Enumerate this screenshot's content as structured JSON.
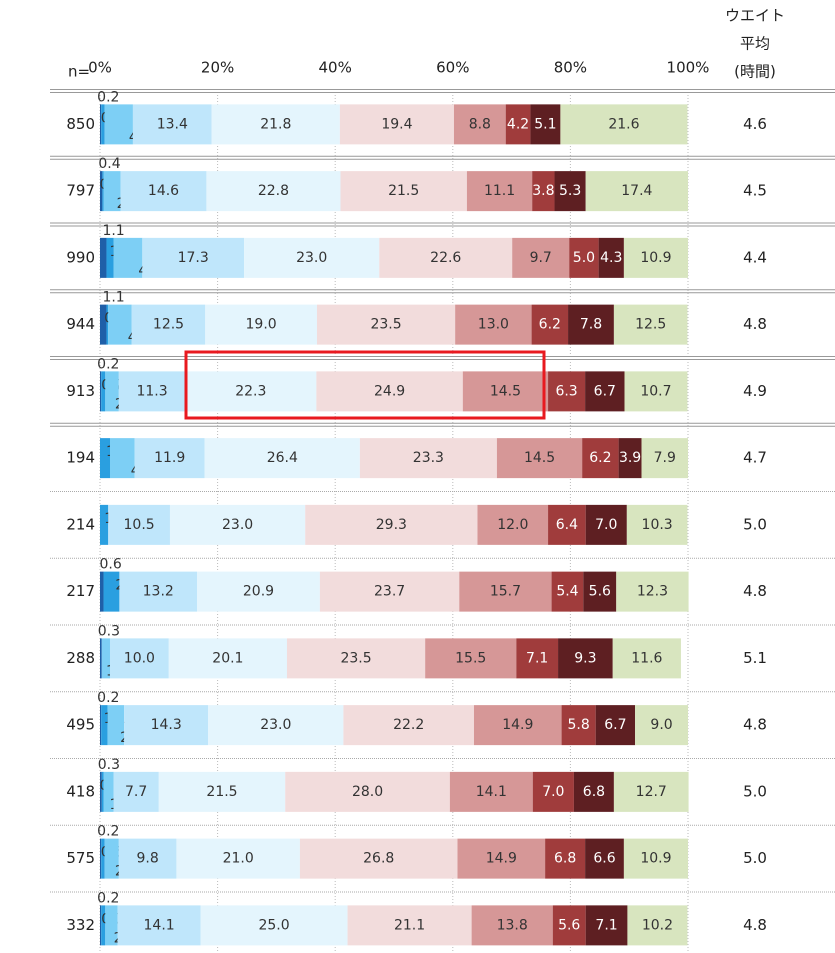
{
  "chart_data": {
    "type": "stacked_bar",
    "n_label": "n=",
    "avg_label": [
      "ウエイト",
      "平均",
      "(時間)"
    ],
    "categories": [
      850,
      797,
      990,
      944,
      913,
      194,
      214,
      217,
      288,
      495,
      418,
      575,
      332
    ],
    "xlim": [
      0,
      100
    ],
    "xticks": [
      {
        "value": 0,
        "label": "0%"
      },
      {
        "value": 20,
        "label": "20%"
      },
      {
        "value": 40,
        "label": "40%"
      },
      {
        "value": 60,
        "label": "60%"
      },
      {
        "value": 80,
        "label": "80%"
      },
      {
        "value": 100,
        "label": "100%"
      }
    ],
    "grid": true,
    "series": [
      {
        "color": "#1f5fa8",
        "label_color": "#333333",
        "values": [
          0.2,
          0.4,
          1.1,
          1.1,
          0.2,
          null,
          null,
          0.6,
          0.3,
          0.2,
          0.3,
          0.2,
          0.2
        ],
        "value_labels": [
          "0.2",
          "0.4",
          "1.1",
          "1.1",
          "0.2",
          null,
          null,
          "0.6",
          "0.3",
          "0.2",
          "0.3",
          "0.2",
          "0.2"
        ]
      },
      {
        "color": "#2a9fe0",
        "label_color": "#333333",
        "values": [
          0.6,
          0.2,
          1.2,
          0.3,
          0.7,
          1.7,
          1.4,
          2.7,
          null,
          1.1,
          0.3,
          0.6,
          0.7
        ],
        "value_labels": [
          "0.6",
          "0.2",
          "1.2",
          "0.3",
          "0.7",
          "1.7",
          "1.4",
          "2.7",
          null,
          "1.1",
          "0.3",
          "0.6",
          "0.7"
        ]
      },
      {
        "color": "#7dcff5",
        "label_color": "#333333",
        "values": [
          4.8,
          2.9,
          4.9,
          4.0,
          2.3,
          4.2,
          null,
          null,
          1.4,
          2.8,
          1.7,
          2.4,
          2.1
        ],
        "value_labels": [
          "4.8",
          "2.9",
          "4.9",
          "4.0",
          "2.3",
          "4.2",
          null,
          null,
          "1.4",
          "2.8",
          "1.7",
          "2.4",
          "2.1"
        ]
      },
      {
        "color": "#bfe6fb",
        "label_color": "#333333",
        "values": [
          13.4,
          14.6,
          17.3,
          12.5,
          11.3,
          11.9,
          10.5,
          13.2,
          10.0,
          14.3,
          7.7,
          9.8,
          14.1
        ],
        "value_labels": [
          "13.4",
          "14.6",
          "17.3",
          "12.5",
          "11.3",
          "11.9",
          "10.5",
          "13.2",
          "10.0",
          "14.3",
          "7.7",
          "9.8",
          "14.1"
        ]
      },
      {
        "color": "#e4f5fd",
        "label_color": "#333333",
        "values": [
          21.8,
          22.8,
          23.0,
          19.0,
          22.3,
          26.4,
          23.0,
          20.9,
          20.1,
          23.0,
          21.5,
          21.0,
          25.0
        ],
        "value_labels": [
          "21.8",
          "22.8",
          "23.0",
          "19.0",
          "22.3",
          "26.4",
          "23.0",
          "20.9",
          "20.1",
          "23.0",
          "21.5",
          "21.0",
          "25.0"
        ]
      },
      {
        "color": "#f2dcdc",
        "label_color": "#333333",
        "values": [
          19.4,
          21.5,
          22.6,
          23.5,
          24.9,
          23.3,
          29.3,
          23.7,
          23.5,
          22.2,
          28.0,
          26.8,
          21.1
        ],
        "value_labels": [
          "19.4",
          "21.5",
          "22.6",
          "23.5",
          "24.9",
          "23.3",
          "29.3",
          "23.7",
          "23.5",
          "22.2",
          "28.0",
          "26.8",
          "21.1"
        ]
      },
      {
        "color": "#d69797",
        "label_color": "#333333",
        "values": [
          8.8,
          11.1,
          9.7,
          13.0,
          14.5,
          14.5,
          12.0,
          15.7,
          15.5,
          14.9,
          14.1,
          14.9,
          13.8
        ],
        "value_labels": [
          "8.8",
          "11.1",
          "9.7",
          "13.0",
          "14.5",
          "14.5",
          "12.0",
          "15.7",
          "15.5",
          "14.9",
          "14.1",
          "14.9",
          "13.8"
        ]
      },
      {
        "color": "#a03c3c",
        "label_color": "#ffffff",
        "values": [
          4.2,
          3.8,
          5.0,
          6.2,
          6.3,
          6.2,
          6.4,
          5.4,
          7.1,
          5.8,
          7.0,
          6.8,
          5.6
        ],
        "value_labels": [
          "4.2",
          "3.8",
          "5.0",
          "6.2",
          "6.3",
          "6.2",
          "6.4",
          "5.4",
          "7.1",
          "5.8",
          "7.0",
          "6.8",
          "5.6"
        ]
      },
      {
        "color": "#5e1f22",
        "label_color": "#ffffff",
        "values": [
          5.1,
          5.3,
          4.3,
          7.8,
          6.7,
          3.9,
          7.0,
          5.6,
          9.3,
          6.7,
          6.8,
          6.6,
          7.1
        ],
        "value_labels": [
          "5.1",
          "5.3",
          "4.3",
          "7.8",
          "6.7",
          "3.9",
          "7.0",
          "5.6",
          "9.3",
          "6.7",
          "6.8",
          "6.6",
          "7.1"
        ]
      },
      {
        "color": "#d8e5bf",
        "label_color": "#333333",
        "values": [
          21.6,
          17.4,
          10.9,
          12.5,
          10.7,
          7.9,
          10.3,
          12.3,
          11.6,
          9.0,
          12.7,
          10.9,
          10.2
        ],
        "value_labels": [
          "21.6",
          "17.4",
          "10.9",
          "12.5",
          "10.7",
          "7.9",
          "10.3",
          "12.3",
          "11.6",
          "9.0",
          "12.7",
          "10.9",
          "10.2"
        ]
      }
    ],
    "averages": [
      4.6,
      4.5,
      4.4,
      4.8,
      4.9,
      4.7,
      5.0,
      4.8,
      5.1,
      4.8,
      5.0,
      5.0,
      4.8
    ],
    "average_labels": [
      "4.6",
      "4.5",
      "4.4",
      "4.8",
      "4.9",
      "4.7",
      "5.0",
      "4.8",
      "5.1",
      "4.8",
      "5.0",
      "5.0",
      "4.8"
    ]
  }
}
